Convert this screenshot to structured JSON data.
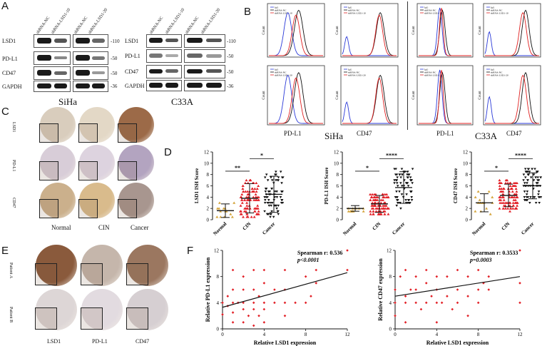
{
  "panels": {
    "A": "A",
    "B": "B",
    "C": "C",
    "D": "D",
    "E": "E",
    "F": "F"
  },
  "blotA": {
    "left_lanes": [
      "shRNA-NC",
      "shRNA-LSD1-10",
      "shRNA-NC",
      "shRNA-LSD1-20"
    ],
    "right_lanes": [
      "shRNA-NC",
      "shRNA-LSD1-10",
      "shRNA-NC",
      "shRNA-LSD1-20"
    ],
    "proteins": [
      "LSD1",
      "PD-L1",
      "CD47",
      "GAPDH"
    ],
    "left_mw": [
      "-110",
      "-50",
      "-50",
      "-36"
    ],
    "right_mw": [
      "-110",
      "-50",
      "-50",
      "-36"
    ],
    "left_cell": "SiHa",
    "right_cell": "C33A"
  },
  "flowB": {
    "legend_top": [
      "IgG",
      "shRNA-NC",
      "shRNA-LSD1-10"
    ],
    "legend_bottom": [
      "IgG",
      "shRNA-NC",
      "shRNA-LSD1-20"
    ],
    "ylabel": "Count",
    "xlabels": [
      "PD-L1",
      "CD47",
      "PD-L1",
      "CD47"
    ],
    "cell_left": "SiHa",
    "cell_right": "C33A"
  },
  "ihcC": {
    "rows": [
      "LSD1",
      "PD-L1",
      "CD47"
    ],
    "cols": [
      "Normal",
      "CIN",
      "Cancer"
    ]
  },
  "ihcE": {
    "rows": [
      "Patient A",
      "Patient B"
    ],
    "cols": [
      "LSD1",
      "PD-L1",
      "CD47"
    ]
  },
  "chart_data": [
    {
      "type": "scatter",
      "ylabel": "LSD1 ISH Score",
      "categories": [
        "Normal",
        "CIN",
        "Cancer"
      ],
      "ylim": [
        0,
        12
      ],
      "yticks": [
        "0",
        "2",
        "4",
        "6",
        "8",
        "10",
        "12"
      ],
      "means": [
        1.6,
        3.8,
        4.5
      ],
      "sd": [
        1.2,
        2.6,
        3.2
      ],
      "significance": [
        {
          "pair": [
            "Normal",
            "CIN"
          ],
          "label": "**"
        },
        {
          "pair": [
            "CIN",
            "Cancer"
          ],
          "label": "*"
        }
      ]
    },
    {
      "type": "scatter",
      "ylabel": "PD-L1 ISH Score",
      "categories": [
        "Normal",
        "CIN",
        "Cancer"
      ],
      "ylim": [
        0,
        12
      ],
      "yticks": [
        "0",
        "2",
        "4",
        "6",
        "8",
        "10",
        "12"
      ],
      "means": [
        2.0,
        2.8,
        5.7
      ],
      "sd": [
        0.5,
        1.5,
        2.8
      ],
      "significance": [
        {
          "pair": [
            "Normal",
            "CIN"
          ],
          "label": "*"
        },
        {
          "pair": [
            "CIN",
            "Cancer"
          ],
          "label": "****"
        }
      ]
    },
    {
      "type": "scatter",
      "ylabel": "CD47 ISH Score",
      "categories": [
        "Normal",
        "CIN",
        "Cancer"
      ],
      "ylim": [
        0,
        12
      ],
      "yticks": [
        "0",
        "2",
        "4",
        "6",
        "8",
        "10",
        "12"
      ],
      "means": [
        3.0,
        4.3,
        6.0
      ],
      "sd": [
        1.6,
        2.0,
        2.3
      ],
      "significance": [
        {
          "pair": [
            "Normal",
            "CIN"
          ],
          "label": "*"
        },
        {
          "pair": [
            "CIN",
            "Cancer"
          ],
          "label": "****"
        }
      ]
    },
    {
      "type": "scatter",
      "xlabel": "Relative LSD1 expression",
      "ylabel": "Relative PD-L1 expression",
      "xlim": [
        0,
        12
      ],
      "ylim": [
        0,
        12
      ],
      "xticks": [
        "0",
        "4",
        "8",
        "12"
      ],
      "yticks": [
        "0",
        "4",
        "8",
        "12"
      ],
      "stat1": "Spearman r: 0.536",
      "stat2": "p<0.0001",
      "fit": [
        [
          0,
          3.3
        ],
        [
          12,
          8.6
        ]
      ],
      "points": [
        [
          0,
          2.2
        ],
        [
          0,
          4
        ],
        [
          0.5,
          3.5
        ],
        [
          0.5,
          5
        ],
        [
          1,
          1
        ],
        [
          1,
          2.5
        ],
        [
          1,
          4
        ],
        [
          1,
          6
        ],
        [
          1,
          9
        ],
        [
          1.5,
          4
        ],
        [
          2,
          1
        ],
        [
          2,
          3
        ],
        [
          2,
          4
        ],
        [
          2,
          6
        ],
        [
          2,
          8
        ],
        [
          2.5,
          2
        ],
        [
          3,
          0.5
        ],
        [
          3,
          3
        ],
        [
          3,
          4
        ],
        [
          3,
          6
        ],
        [
          3,
          9
        ],
        [
          3.5,
          2
        ],
        [
          3.5,
          5
        ],
        [
          4,
          1
        ],
        [
          4,
          3
        ],
        [
          4,
          4
        ],
        [
          4,
          7
        ],
        [
          4,
          9
        ],
        [
          5,
          4
        ],
        [
          5,
          6
        ],
        [
          6,
          2
        ],
        [
          6,
          4
        ],
        [
          6,
          6
        ],
        [
          6,
          9
        ],
        [
          7,
          4
        ],
        [
          8,
          4
        ],
        [
          8,
          8
        ],
        [
          8.5,
          5
        ],
        [
          9,
          7
        ],
        [
          9,
          9
        ],
        [
          12,
          9
        ],
        [
          12,
          12
        ]
      ]
    },
    {
      "type": "scatter",
      "xlabel": "Relative LSD1 expression",
      "ylabel": "Relative CD47 expression",
      "xlim": [
        0,
        12
      ],
      "ylim": [
        0,
        12
      ],
      "xticks": [
        "0",
        "4",
        "8",
        "12"
      ],
      "yticks": [
        "0",
        "4",
        "8",
        "12"
      ],
      "stat1": "Spearman r: 0.3533",
      "stat2": "p=0.0003",
      "fit": [
        [
          0,
          5.0
        ],
        [
          12,
          8.0
        ]
      ],
      "points": [
        [
          0,
          2
        ],
        [
          0,
          4
        ],
        [
          0,
          6
        ],
        [
          0.5,
          8
        ],
        [
          1,
          1
        ],
        [
          1,
          4
        ],
        [
          1,
          5
        ],
        [
          1,
          9
        ],
        [
          1.5,
          6
        ],
        [
          2,
          4
        ],
        [
          2,
          6
        ],
        [
          2,
          8
        ],
        [
          2.5,
          3
        ],
        [
          3,
          4
        ],
        [
          3,
          7
        ],
        [
          3,
          9
        ],
        [
          3.5,
          5
        ],
        [
          4,
          1
        ],
        [
          4,
          4
        ],
        [
          4,
          6
        ],
        [
          4,
          8
        ],
        [
          4.5,
          4
        ],
        [
          5,
          5
        ],
        [
          5,
          8
        ],
        [
          5.5,
          3
        ],
        [
          6,
          4
        ],
        [
          6,
          6
        ],
        [
          6,
          9
        ],
        [
          7,
          2
        ],
        [
          7,
          5
        ],
        [
          7,
          8
        ],
        [
          8,
          4
        ],
        [
          8,
          6
        ],
        [
          8,
          9
        ],
        [
          8.5,
          7
        ],
        [
          9,
          6
        ],
        [
          9,
          8
        ],
        [
          12,
          4
        ],
        [
          12,
          7
        ],
        [
          12,
          12
        ]
      ]
    }
  ]
}
